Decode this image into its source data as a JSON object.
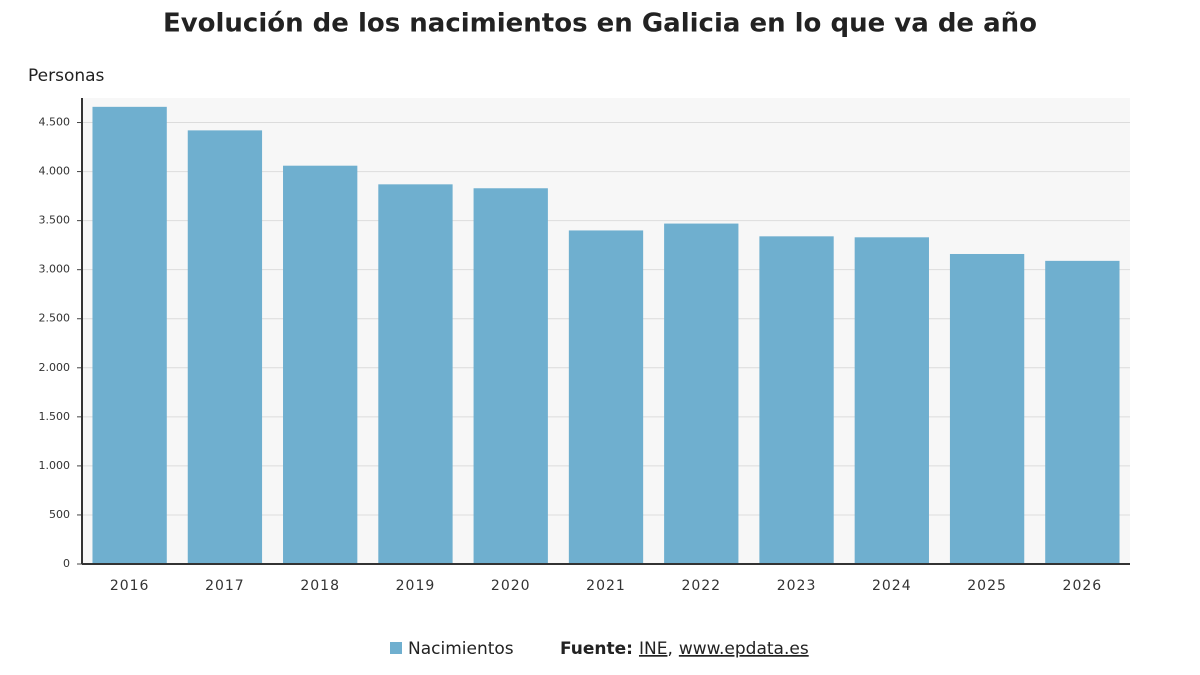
{
  "chart_data": {
    "type": "bar",
    "title": "Evolución de los nacimientos en Galicia en lo que va de año",
    "y_label": "Personas",
    "categories": [
      "2016",
      "2017",
      "2018",
      "2019",
      "2020",
      "2021",
      "2022",
      "2023",
      "2024",
      "2025",
      "2026"
    ],
    "series": [
      {
        "name": "Nacimientos",
        "color": "#6fafcf",
        "values": [
          4660,
          4420,
          4060,
          3870,
          3830,
          3400,
          3470,
          3340,
          3330,
          3160,
          3090
        ]
      }
    ],
    "ylim": [
      0,
      4750
    ],
    "yticks": [
      0,
      500,
      {
        "value": 1000,
        "label": "1.000"
      },
      {
        "value": 1500,
        "label": "1.500"
      },
      {
        "value": 2000,
        "label": "2.000"
      },
      {
        "value": 2500,
        "label": "2.500"
      },
      {
        "value": 3000,
        "label": "3.000"
      },
      {
        "value": 3500,
        "label": "3.500"
      },
      {
        "value": 4000,
        "label": "4.000"
      },
      {
        "value": 4500,
        "label": "4.500"
      }
    ],
    "grid": true,
    "legend": "bottom",
    "source": {
      "label": "Fuente:",
      "items": [
        "INE",
        "www.epdata.es"
      ],
      "separator": ","
    }
  }
}
